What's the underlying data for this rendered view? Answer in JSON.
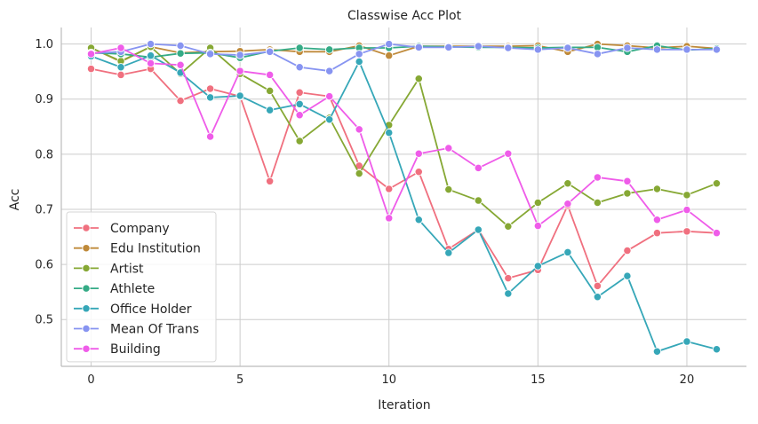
{
  "chart_data": {
    "type": "line",
    "title": "Classwise Acc Plot",
    "xlabel": "Iteration",
    "ylabel": "Acc",
    "xlim": [
      -1,
      22
    ],
    "ylim": [
      0.415,
      1.03
    ],
    "xticks": [
      0,
      5,
      10,
      15,
      20
    ],
    "yticks": [
      0.5,
      0.6,
      0.7,
      0.8,
      0.9,
      1.0
    ],
    "xtick_labels": [
      "0",
      "5",
      "10",
      "15",
      "20"
    ],
    "ytick_labels": [
      "0.5",
      "0.6",
      "0.7",
      "0.8",
      "0.9",
      "1.0"
    ],
    "grid": true,
    "legend_position": "bottom-left",
    "x": [
      0,
      1,
      2,
      3,
      4,
      5,
      6,
      7,
      8,
      9,
      10,
      11,
      12,
      13,
      14,
      15,
      16,
      17,
      18,
      19,
      20,
      21
    ],
    "series": [
      {
        "name": "Company",
        "color": "#f0707f",
        "values": [
          0.955,
          0.944,
          0.955,
          0.897,
          0.919,
          0.905,
          0.751,
          0.912,
          0.905,
          0.779,
          0.737,
          0.768,
          0.628,
          0.663,
          0.575,
          0.59,
          0.707,
          0.561,
          0.625,
          0.657,
          0.66,
          0.657
        ]
      },
      {
        "name": "Edu Institution",
        "color": "#bf8a3a",
        "values": [
          0.993,
          0.968,
          0.995,
          0.984,
          0.986,
          0.987,
          0.99,
          0.986,
          0.986,
          0.997,
          0.979,
          0.996,
          0.996,
          0.996,
          0.996,
          0.997,
          0.986,
          1.0,
          0.997,
          0.993,
          0.996,
          0.992
        ]
      },
      {
        "name": "Artist",
        "color": "#86a834",
        "values": [
          0.993,
          0.969,
          0.995,
          0.946,
          0.993,
          0.946,
          0.915,
          0.824,
          0.866,
          0.765,
          0.853,
          0.937,
          0.736,
          0.716,
          0.669,
          0.712,
          0.747,
          0.712,
          0.729,
          0.737,
          0.726,
          0.747
        ]
      },
      {
        "name": "Athlete",
        "color": "#35ab86",
        "values": [
          0.984,
          0.982,
          0.976,
          0.983,
          0.984,
          0.975,
          0.987,
          0.993,
          0.99,
          0.993,
          0.993,
          0.996,
          0.995,
          0.994,
          0.994,
          0.993,
          0.994,
          0.994,
          0.986,
          0.997,
          0.989,
          0.992
        ]
      },
      {
        "name": "Office Holder",
        "color": "#36a7b8",
        "values": [
          0.978,
          0.958,
          0.979,
          0.948,
          0.903,
          0.906,
          0.88,
          0.891,
          0.863,
          0.968,
          0.839,
          0.681,
          0.621,
          0.663,
          0.547,
          0.597,
          0.622,
          0.541,
          0.579,
          0.442,
          0.46,
          0.446
        ]
      },
      {
        "name": "Mean Of Trans",
        "color": "#8794f1",
        "values": [
          0.983,
          0.986,
          1.0,
          0.997,
          0.982,
          0.98,
          0.986,
          0.958,
          0.951,
          0.982,
          1.0,
          0.994,
          0.994,
          0.996,
          0.993,
          0.99,
          0.993,
          0.982,
          0.993,
          0.99,
          0.99,
          0.99
        ]
      },
      {
        "name": "Building",
        "color": "#ef5ce9",
        "values": [
          0.982,
          0.993,
          0.965,
          0.962,
          0.832,
          0.951,
          0.944,
          0.871,
          0.905,
          0.845,
          0.684,
          0.801,
          0.811,
          0.775,
          0.801,
          0.67,
          0.71,
          0.758,
          0.751,
          0.681,
          0.699,
          0.657
        ]
      }
    ]
  }
}
